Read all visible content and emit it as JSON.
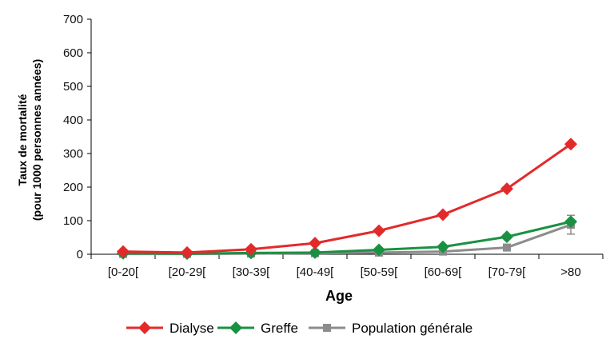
{
  "chart_data": {
    "type": "line",
    "title": "",
    "xlabel": "Age",
    "ylabel_lines": [
      "Taux de mortalité",
      "(pour 1000 personnes années)"
    ],
    "categories": [
      "[0-20[",
      "[20-29[",
      "[30-39[",
      "[40-49[",
      "[50-59[",
      "[60-69[",
      "[70-79[",
      ">80"
    ],
    "ylim": [
      0,
      700
    ],
    "yticks": [
      0,
      100,
      200,
      300,
      400,
      500,
      600,
      700
    ],
    "grid": false,
    "legend_position": "bottom",
    "series": [
      {
        "name": "Dialyse",
        "color": "#e32a2a",
        "marker": "diamond",
        "values": [
          8,
          5,
          15,
          33,
          70,
          118,
          195,
          328
        ]
      },
      {
        "name": "Greffe",
        "color": "#1a9142",
        "marker": "diamond",
        "values": [
          3,
          2,
          4,
          5,
          13,
          22,
          52,
          97
        ]
      },
      {
        "name": "Population générale",
        "color": "#8c8c8c",
        "marker": "square",
        "values": [
          1,
          1,
          2,
          3,
          5,
          8,
          20,
          88
        ],
        "error": [
          null,
          null,
          null,
          null,
          null,
          null,
          null,
          28
        ]
      }
    ]
  }
}
